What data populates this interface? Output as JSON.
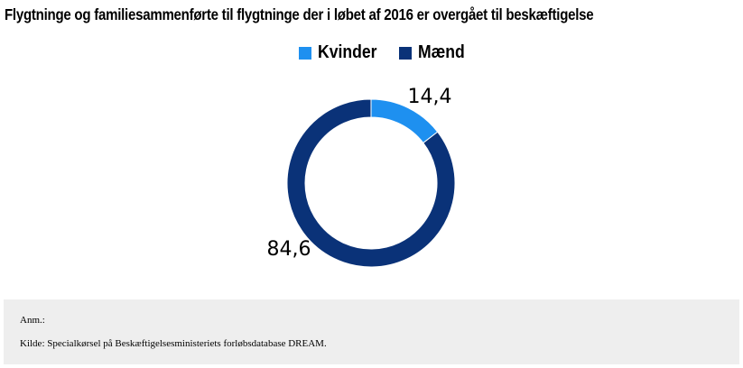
{
  "title": "Flygtninge og familiesammenførte til flygtninge der i løbet af 2016 er overgået til beskæftigelse",
  "legend": [
    {
      "label": "Kvinder",
      "color": "#1e90f0"
    },
    {
      "label": "Mænd",
      "color": "#0a3278"
    }
  ],
  "chart_data": {
    "type": "pie",
    "donut": true,
    "title": "Flygtninge og familiesammenførte til flygtninge der i løbet af 2016 er overgået til beskæftigelse",
    "categories": [
      "Kvinder",
      "Mænd"
    ],
    "values": [
      14.4,
      84.6
    ],
    "data_labels": [
      "14,4",
      "84,6"
    ],
    "colors": [
      "#1e90f0",
      "#0a3278"
    ],
    "legend_position": "top"
  },
  "footer": {
    "note": "Anm.:",
    "source": "Kilde: Specialkørsel på Beskæftigelsesministeriets forløbsdatabase DREAM."
  }
}
